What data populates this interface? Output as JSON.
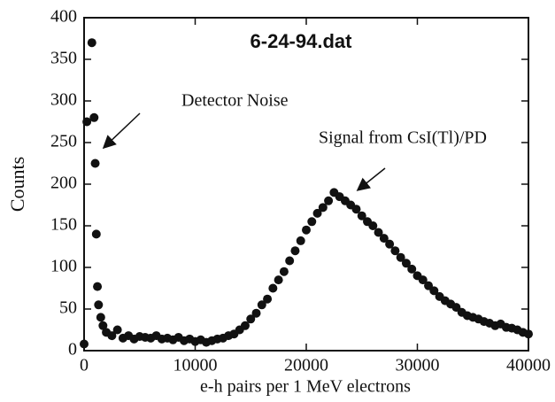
{
  "chart_data": {
    "type": "scatter",
    "title": "6-24-94.dat",
    "x_label": "e-h pairs per 1 MeV electrons",
    "y_label": "Counts",
    "annotations": [
      "Detector Noise",
      "Signal from CsI(Tl)/PD"
    ],
    "color": "#111111",
    "xlim": [
      0,
      40000
    ],
    "ylim": [
      0,
      400
    ],
    "xticks": [
      0,
      10000,
      20000,
      30000,
      40000
    ],
    "yticks": [
      0,
      50,
      100,
      150,
      200,
      250,
      300,
      350,
      400
    ],
    "x": [
      0,
      250,
      700,
      900,
      1000,
      1100,
      1200,
      1300,
      1500,
      1700,
      2000,
      2500,
      3000,
      3500,
      4000,
      4500,
      5000,
      5500,
      6000,
      6500,
      7000,
      7500,
      8000,
      8500,
      9000,
      9500,
      10000,
      10500,
      11000,
      11500,
      12000,
      12500,
      13000,
      13500,
      14000,
      14500,
      15000,
      15500,
      16000,
      16500,
      17000,
      17500,
      18000,
      18500,
      19000,
      19500,
      20000,
      20500,
      21000,
      21500,
      22000,
      22500,
      23000,
      23500,
      24000,
      24500,
      25000,
      25500,
      26000,
      26500,
      27000,
      27500,
      28000,
      28500,
      29000,
      29500,
      30000,
      30500,
      31000,
      31500,
      32000,
      32500,
      33000,
      33500,
      34000,
      34500,
      35000,
      35500,
      36000,
      36500,
      37000,
      37500,
      38000,
      38500,
      39000,
      39500,
      40000
    ],
    "values": [
      8,
      275,
      370,
      280,
      225,
      140,
      77,
      55,
      40,
      30,
      22,
      18,
      25,
      15,
      18,
      14,
      17,
      16,
      15,
      18,
      14,
      15,
      13,
      16,
      12,
      14,
      11,
      13,
      10,
      12,
      14,
      15,
      18,
      20,
      25,
      30,
      38,
      45,
      55,
      62,
      75,
      85,
      95,
      108,
      120,
      132,
      145,
      155,
      165,
      172,
      180,
      190,
      185,
      180,
      175,
      170,
      162,
      155,
      150,
      142,
      135,
      128,
      120,
      112,
      105,
      98,
      90,
      85,
      78,
      72,
      65,
      60,
      56,
      52,
      46,
      42,
      40,
      38,
      35,
      33,
      30,
      32,
      28,
      27,
      25,
      22,
      20
    ]
  }
}
